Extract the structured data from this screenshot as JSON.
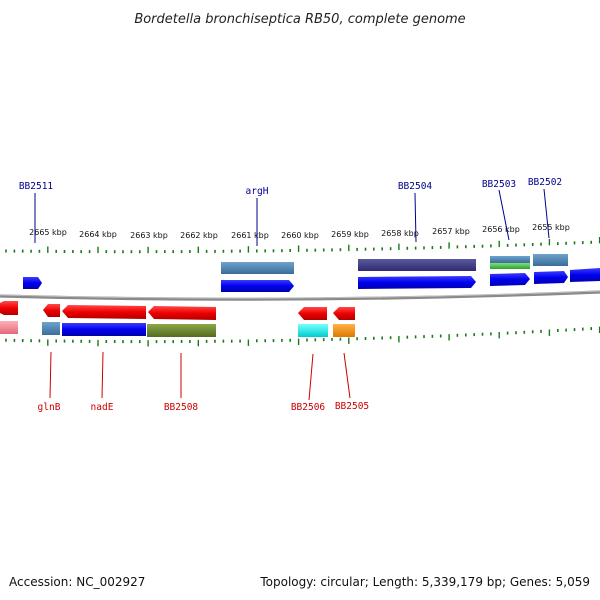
{
  "title": "Bordetella bronchiseptica RB50, complete genome",
  "footer": {
    "accession": "Accession: NC_002927",
    "summary": "Topology: circular; Length: 5,339,179 bp; Genes: 5,059"
  },
  "kbp_ticks": [
    {
      "label": "2665 kbp"
    },
    {
      "label": "2664 kbp"
    },
    {
      "label": "2663 kbp"
    },
    {
      "label": "2662 kbp"
    },
    {
      "label": "2661 kbp"
    },
    {
      "label": "2660 kbp"
    },
    {
      "label": "2659 kbp"
    },
    {
      "label": "2658 kbp"
    },
    {
      "label": "2657 kbp"
    },
    {
      "label": "2656 kbp"
    },
    {
      "label": "2655 kbp"
    }
  ],
  "top_labels": [
    "BB2511",
    "argH",
    "BB2504",
    "BB2503",
    "BB2502"
  ],
  "bottom_labels": [
    "glnB",
    "nadE",
    "BB2508",
    "BB2506",
    "BB2505"
  ],
  "colors": {
    "forward_cds": "#0000ee",
    "reverse_cds": "#ee0000",
    "top_label": "#00008b",
    "bottom_label": "#cc0000",
    "tick": "#1a7a1a",
    "backbone": "#7f7f7f"
  }
}
